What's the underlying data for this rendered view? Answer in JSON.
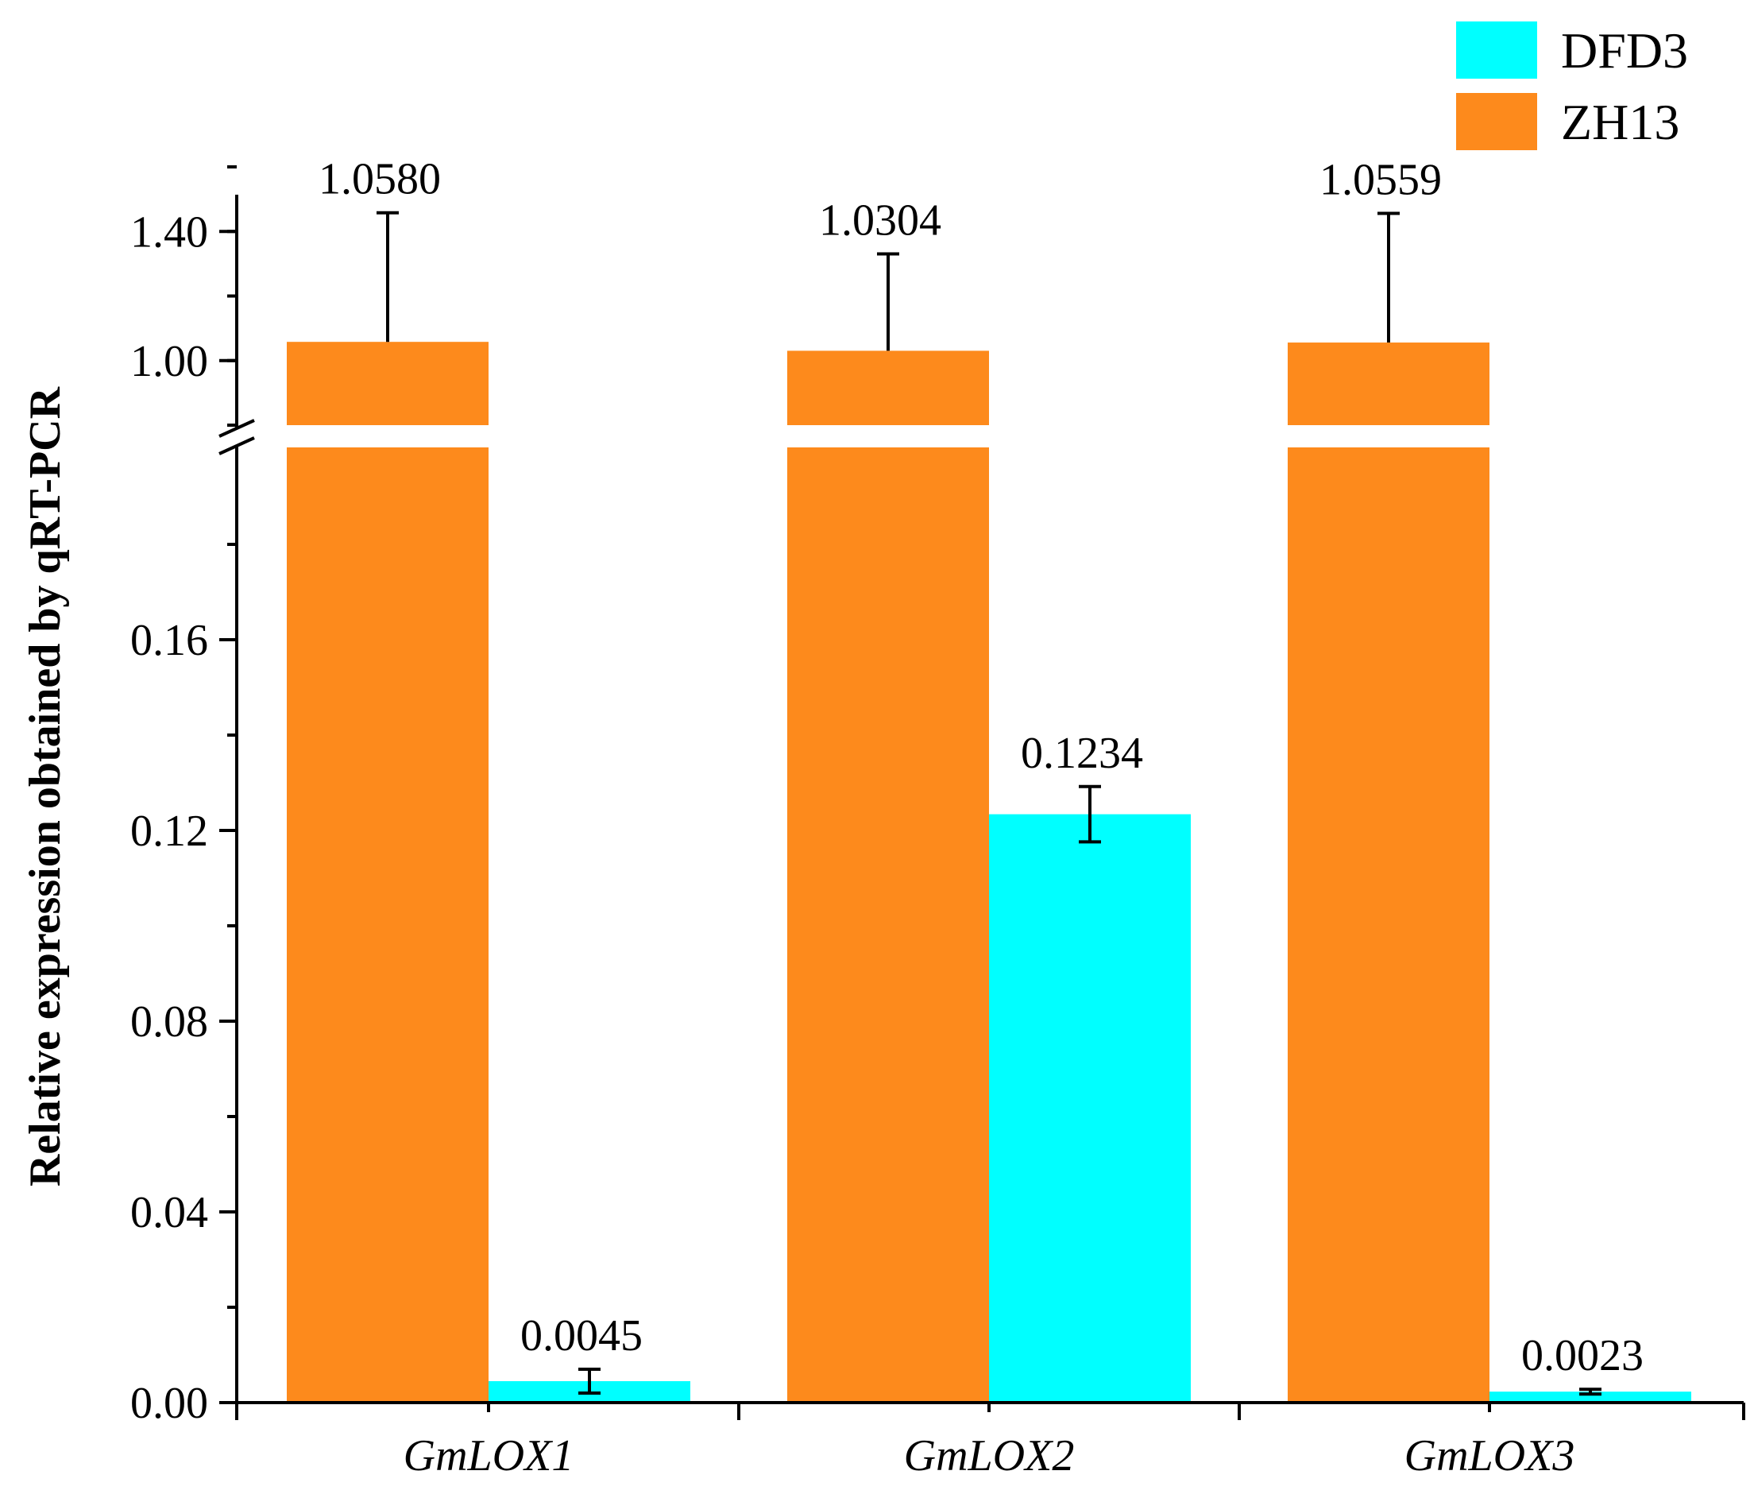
{
  "chart_data": {
    "type": "bar",
    "title": "",
    "xlabel": "",
    "ylabel": "Relative expression obtained by qRT-PCR",
    "categories": [
      "GmLOX1",
      "GmLOX2",
      "GmLOX3"
    ],
    "series": [
      {
        "name": "ZH13",
        "color": "#fd8a1c",
        "values": [
          1.058,
          1.0304,
          1.0559
        ],
        "error": [
          0.4,
          0.3,
          0.4
        ],
        "labels": [
          "1.0580",
          "1.0304",
          "1.0559"
        ]
      },
      {
        "name": "DFD3",
        "color": "#00ffff",
        "values": [
          0.0045,
          0.1234,
          0.0023
        ],
        "error": [
          0.0025,
          0.0058,
          0.0005
        ],
        "labels": [
          "0.0045",
          "0.1234",
          "0.0023"
        ]
      }
    ],
    "y_axis": {
      "broken": true,
      "lower_range": [
        0,
        0.2
      ],
      "upper_range": [
        0.8,
        1.6
      ],
      "lower_ticks": [
        "0.00",
        "0.04",
        "0.08",
        "0.12",
        "0.16"
      ],
      "upper_ticks": [
        "1.00",
        "1.40"
      ]
    },
    "legend": {
      "position": "top-right",
      "entries": [
        "DFD3",
        "ZH13"
      ]
    },
    "grid": false
  }
}
